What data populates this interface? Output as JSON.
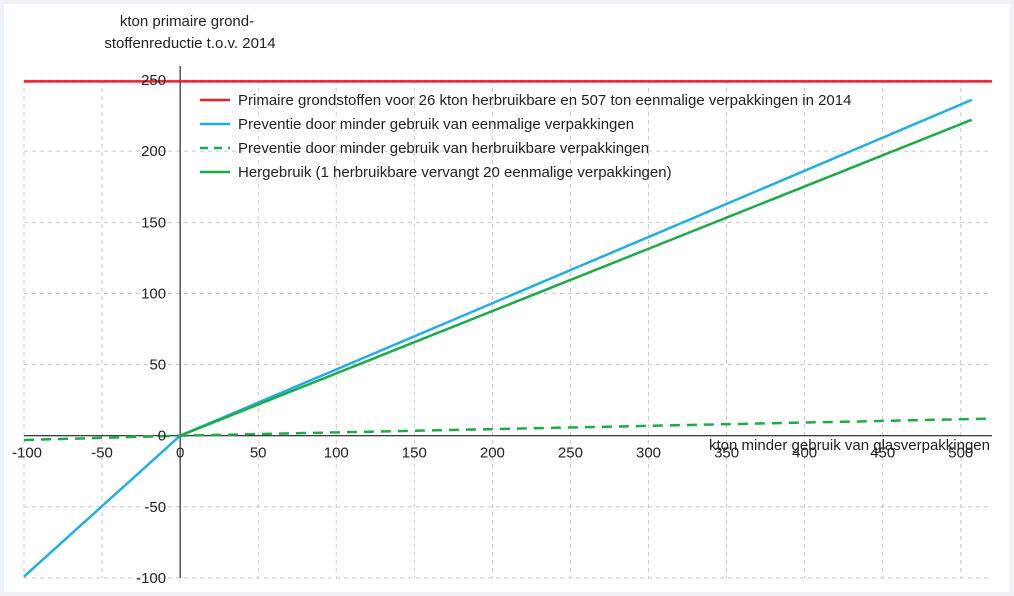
{
  "chart_data": {
    "type": "line",
    "ylabel_lines": [
      "kton primaire grond-",
      "stoffenreductie t.o.v. 2014"
    ],
    "xlabel": "kton minder gebruik van glasverpakkingen",
    "xlim": [
      -100,
      520
    ],
    "ylim": [
      -100,
      250
    ],
    "xticks": [
      -100,
      -50,
      0,
      50,
      100,
      150,
      200,
      250,
      300,
      350,
      400,
      450,
      500
    ],
    "yticks": [
      -100,
      -50,
      0,
      50,
      100,
      150,
      200,
      250
    ],
    "grid": true,
    "legend_position": "top-left",
    "series": [
      {
        "name": "Primaire grondstoffen voor 26 kton herbruikbare en 507 ton eenmalige verpakkingen in 2014",
        "color": "#e8202a",
        "dashed": false,
        "x": [
          -100,
          520
        ],
        "y": [
          249,
          249
        ]
      },
      {
        "name": "Preventie door minder gebruik van eenmalige verpakkingen",
        "color": "#21aee3",
        "dashed": false,
        "x": [
          -100,
          0,
          507
        ],
        "y": [
          -99,
          0,
          236
        ]
      },
      {
        "name": "Preventie door minder gebruik van herbruikbare verpakkingen",
        "color": "#1faa4a",
        "dashed": true,
        "x": [
          -100,
          0,
          520
        ],
        "y": [
          -3,
          0,
          12
        ]
      },
      {
        "name": "Hergebruik (1 herbruikbare vervangt 20 eenmalige verpakkingen)",
        "color": "#1faa4a",
        "dashed": false,
        "x": [
          0,
          507
        ],
        "y": [
          0,
          222
        ]
      }
    ]
  }
}
